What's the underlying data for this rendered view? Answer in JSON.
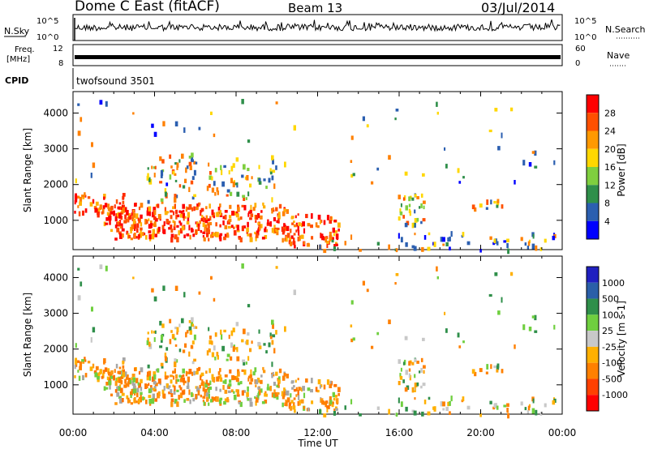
{
  "header": {
    "title": "Dome C East (fitACF)",
    "beam": "Beam 13",
    "date": "03/Jul/2014"
  },
  "status_panels": {
    "nsky_label": "N.Sky",
    "nsearch_label": "N.Search",
    "freq_label_line1": "Freq.",
    "freq_label_line2": "[MHz]",
    "nave_label": "Nave",
    "cpid_label": "CPID",
    "cpid_value": "twofsound 3501",
    "noise_ticks": [
      "10^5",
      "10^0"
    ],
    "freq_ticks": [
      "12",
      "8"
    ],
    "nave_ticks": [
      "60",
      "0"
    ]
  },
  "chart_data": [
    {
      "type": "heatmap",
      "title": "",
      "ylabel": "Slant Range [km]",
      "xlabel": "",
      "x_ticks": [
        "00:00",
        "04:00",
        "08:00",
        "12:00",
        "16:00",
        "20:00",
        "00:00"
      ],
      "y_ticks": [
        1000,
        2000,
        3000,
        4000
      ],
      "ylim": [
        180,
        4600
      ],
      "xlim_hours": [
        0,
        24
      ],
      "colorbar": {
        "label": "Power [dB]",
        "ticks": [
          4,
          8,
          12,
          16,
          20,
          24,
          28
        ],
        "range": [
          0,
          32
        ],
        "colors": [
          "#0000ff",
          "#2b5fb0",
          "#2f8f4a",
          "#7fcf3f",
          "#ffd700",
          "#ff9900",
          "#ff5000",
          "#ff0000"
        ]
      }
    },
    {
      "type": "heatmap",
      "title": "",
      "ylabel": "Slant Range [km]",
      "xlabel": "Time UT",
      "x_ticks": [
        "00:00",
        "04:00",
        "08:00",
        "12:00",
        "16:00",
        "20:00",
        "00:00"
      ],
      "y_ticks": [
        1000,
        2000,
        3000,
        4000
      ],
      "ylim": [
        180,
        4600
      ],
      "xlim_hours": [
        0,
        24
      ],
      "colorbar": {
        "label": "Velocity [m s-1]",
        "ticks": [
          "1000",
          "500",
          "100",
          "25",
          "-25",
          "-100",
          "-500",
          "-1000"
        ],
        "colors": [
          "#2020c0",
          "#2a5fa8",
          "#2f8f4a",
          "#6fcf3f",
          "#c8c8c8",
          "#ffb000",
          "#ff8000",
          "#ff4000",
          "#ff0000"
        ]
      }
    }
  ]
}
